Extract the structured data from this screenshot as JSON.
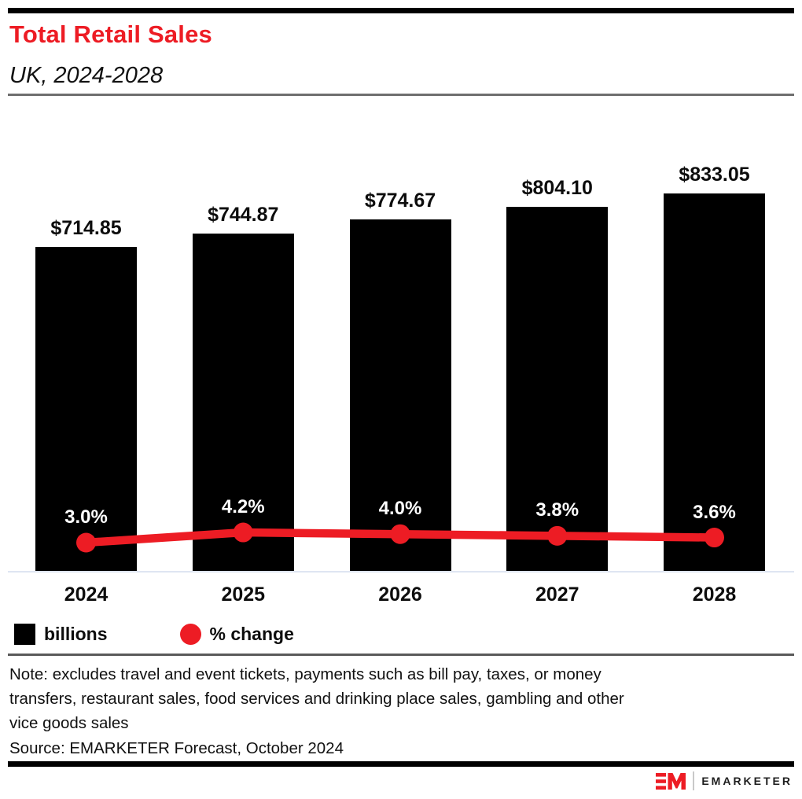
{
  "page": {
    "background": "#ffffff",
    "accent_red": "#ED1C24",
    "bar_black": "#000000"
  },
  "header": {
    "title": "Total Retail Sales",
    "subtitle": "UK, 2024-2028"
  },
  "chart_data": {
    "type": "bar",
    "categories": [
      "2024",
      "2025",
      "2026",
      "2027",
      "2028"
    ],
    "series": [
      {
        "name": "billions",
        "type": "bar",
        "color": "#000000",
        "values": [
          714.85,
          744.87,
          774.67,
          804.1,
          833.05
        ],
        "labels": [
          "$714.85",
          "$744.87",
          "$774.67",
          "$804.10",
          "$833.05"
        ]
      },
      {
        "name": "% change",
        "type": "line",
        "color": "#ED1C24",
        "values": [
          3.0,
          4.2,
          4.0,
          3.8,
          3.6
        ],
        "labels": [
          "3.0%",
          "4.2%",
          "4.0%",
          "3.8%",
          "3.6%"
        ]
      }
    ],
    "title": "Total Retail Sales",
    "subtitle": "UK, 2024-2028",
    "xlabel": "",
    "ylabel": "",
    "grid": false,
    "legend_position": "bottom-left"
  },
  "legend": {
    "items": [
      {
        "label": "billions",
        "swatch": "square",
        "color": "#000000"
      },
      {
        "label": "% change",
        "swatch": "circle",
        "color": "#ED1C24"
      }
    ]
  },
  "footer": {
    "note_lines": [
      "Note: excludes travel and event tickets, payments such as bill pay, taxes, or money",
      "transfers, restaurant sales, food services and drinking place sales, gambling and other",
      "vice goods sales"
    ],
    "source": "Source: EMARKETER Forecast, October 2024"
  },
  "branding": {
    "name": "EMARKETER",
    "mark": "EM-monogram"
  }
}
